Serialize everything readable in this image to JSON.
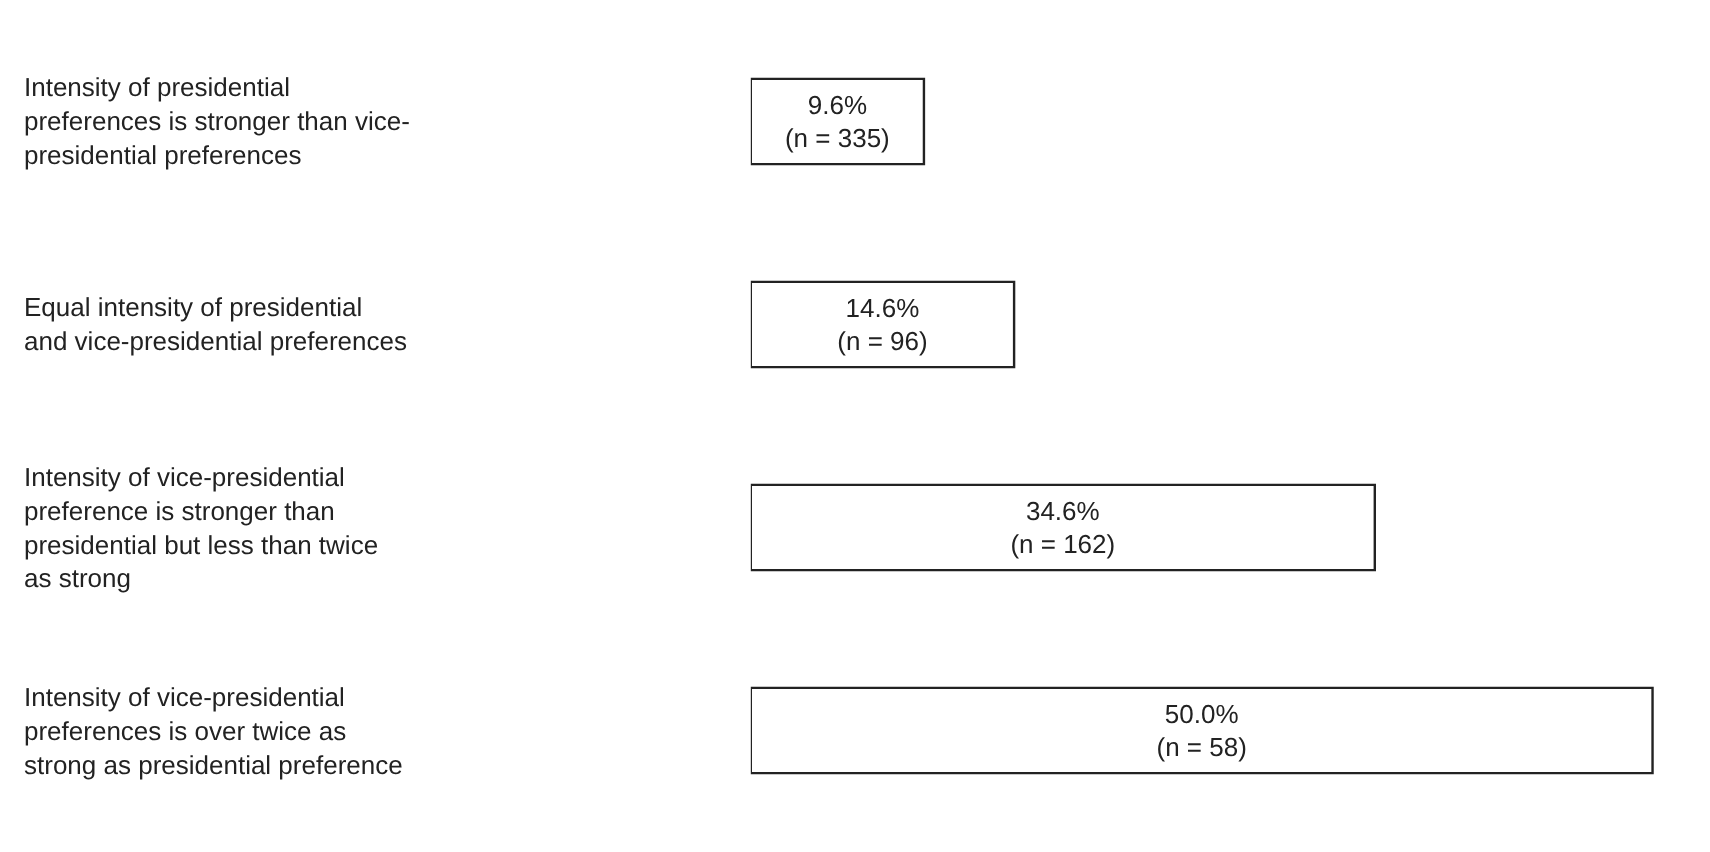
{
  "chart_data": {
    "type": "bar",
    "orientation": "horizontal",
    "categories": [
      "Intensity of presidential preferences is stronger than vice-presidential preferences",
      "Equal intensity of presidential and vice-presidential preferences",
      "Intensity of vice-presidential preference is stronger than presidential but less than twice as strong",
      "Intensity of vice-presidential preferences is over twice as strong as presidential preference"
    ],
    "values": [
      9.6,
      14.6,
      34.6,
      50.0
    ],
    "value_labels": [
      "9.6%\n(n = 335)",
      "14.6%\n(n = 96)",
      "34.6%\n(n = 162)",
      "50.0%\n(n = 58)"
    ],
    "color": "#ffffff"
  }
}
